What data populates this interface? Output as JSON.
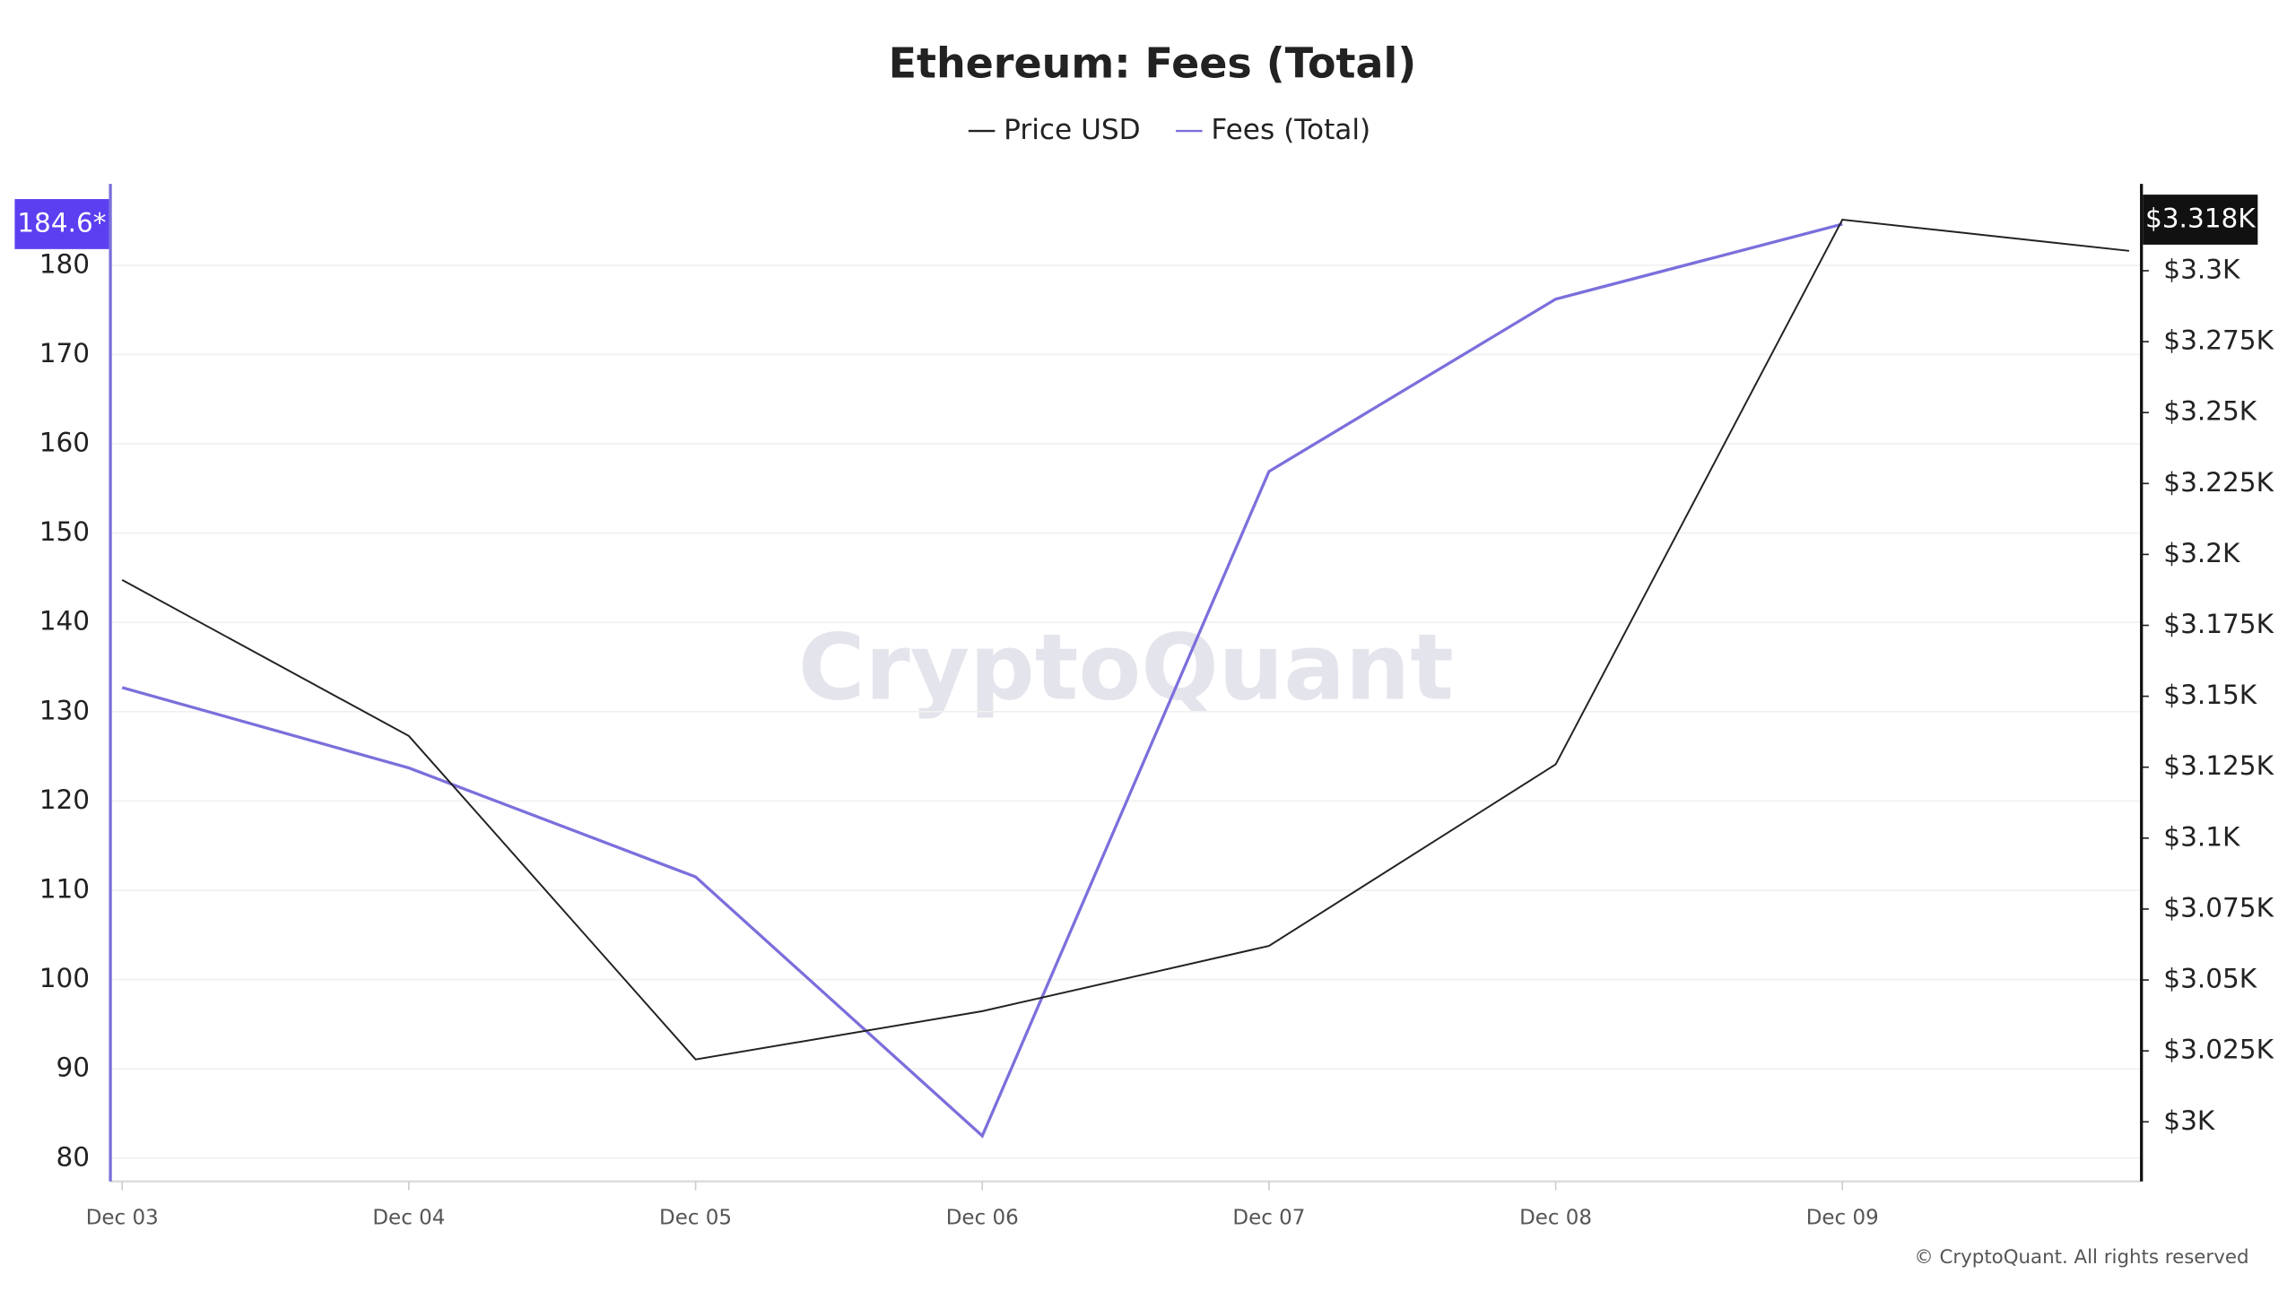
{
  "chart_data": {
    "type": "line",
    "title": "Ethereum: Fees (Total)",
    "watermark": "CryptoQuant",
    "copyright": "© CryptoQuant. All rights reserved",
    "categories": [
      "Dec 03",
      "Dec 04",
      "Dec 05",
      "Dec 06",
      "Dec 07",
      "Dec 08",
      "Dec 09",
      null
    ],
    "series": [
      {
        "name": "Price USD",
        "color": "#222222",
        "axis": "y2",
        "values": [
          3191,
          3136,
          3022,
          3039,
          3062,
          3126,
          3318,
          3307
        ]
      },
      {
        "name": "Fees (Total)",
        "color": "#7b6fdc",
        "axis": "y",
        "values": [
          132.7,
          123.7,
          111.5,
          82.5,
          156.9,
          176.2,
          184.6,
          null
        ]
      }
    ],
    "y_marker_label": "184.6*",
    "y2_marker_label": "$3.318K",
    "ylim": [
      77.4,
      189.1
    ],
    "yticks": [
      80,
      90,
      100,
      110,
      120,
      130,
      140,
      150,
      160,
      170,
      180
    ],
    "y2lim": [
      2979,
      3330.6
    ],
    "y2ticks": [
      {
        "value": 3000,
        "label": "$3K"
      },
      {
        "value": 3025,
        "label": "$3.025K"
      },
      {
        "value": 3050,
        "label": "$3.05K"
      },
      {
        "value": 3075,
        "label": "$3.075K"
      },
      {
        "value": 3100,
        "label": "$3.1K"
      },
      {
        "value": 3125,
        "label": "$3.125K"
      },
      {
        "value": 3150,
        "label": "$3.15K"
      },
      {
        "value": 3175,
        "label": "$3.175K"
      },
      {
        "value": 3200,
        "label": "$3.2K"
      },
      {
        "value": 3225,
        "label": "$3.225K"
      },
      {
        "value": 3250,
        "label": "$3.25K"
      },
      {
        "value": 3275,
        "label": "$3.275K"
      },
      {
        "value": 3300,
        "label": "$3.3K"
      }
    ],
    "grid": true
  }
}
